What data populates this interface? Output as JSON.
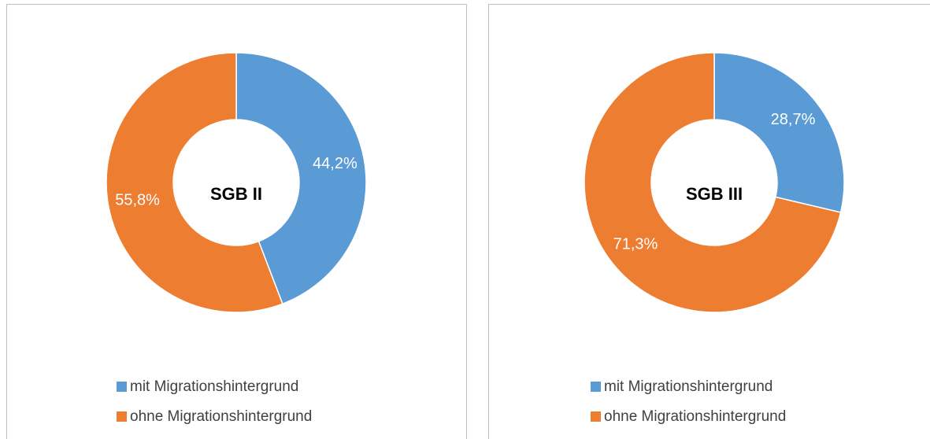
{
  "chart_data": [
    {
      "type": "pie",
      "center_label": "SGB II",
      "categories": [
        "mit Migrationshintergrund",
        "ohne Migrationshintergrund"
      ],
      "values": [
        44.2,
        55.8
      ],
      "value_labels": [
        "44,2%",
        "55,8%"
      ],
      "colors": [
        "#5b9bd5",
        "#ed7d31"
      ]
    },
    {
      "type": "pie",
      "center_label": "SGB III",
      "categories": [
        "mit Migrationshintergrund",
        "ohne Migrationshintergrund"
      ],
      "values": [
        28.7,
        71.3
      ],
      "value_labels": [
        "28,7%",
        "71,3%"
      ],
      "colors": [
        "#5b9bd5",
        "#ed7d31"
      ]
    }
  ]
}
